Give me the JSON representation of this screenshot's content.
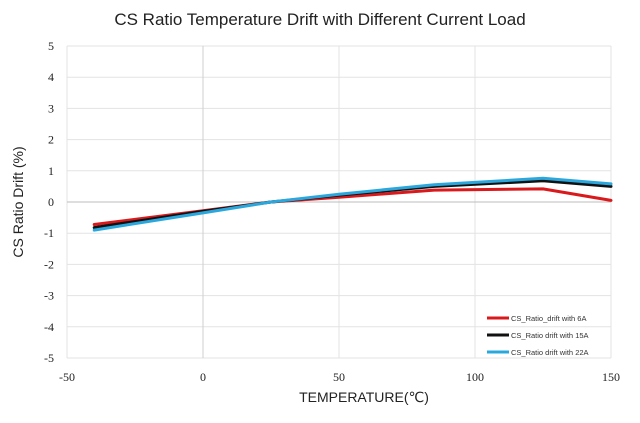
{
  "chart_data": {
    "type": "line",
    "title": "CS Ratio Temperature Drift with Different Current Load",
    "xlabel": "TEMPERATURE(℃)",
    "ylabel": "CS Ratio Drift (%)",
    "xlim": [
      -50,
      150
    ],
    "ylim": [
      -5,
      5
    ],
    "x_ticks": [
      -50,
      0,
      50,
      100,
      150
    ],
    "y_ticks": [
      -5,
      -4,
      -3,
      -2,
      -1,
      0,
      1,
      2,
      3,
      4,
      5
    ],
    "grid": true,
    "legend_position": "bottom-right",
    "series": [
      {
        "name": "CS_Ratio_drift with 6A",
        "color": "#d9191c",
        "x": [
          -40,
          0,
          25,
          50,
          85,
          125,
          150
        ],
        "y": [
          -0.72,
          -0.28,
          0.0,
          0.15,
          0.38,
          0.42,
          0.05
        ]
      },
      {
        "name": "CS_Ratio drift with 15A",
        "color": "#111111",
        "x": [
          -40,
          0,
          25,
          50,
          85,
          125,
          150
        ],
        "y": [
          -0.82,
          -0.3,
          0.0,
          0.22,
          0.5,
          0.68,
          0.5
        ]
      },
      {
        "name": "CS_Ratio drift with 22A",
        "color": "#2aa8dd",
        "x": [
          -40,
          0,
          25,
          50,
          85,
          125,
          150
        ],
        "y": [
          -0.9,
          -0.35,
          0.0,
          0.25,
          0.55,
          0.76,
          0.58
        ]
      }
    ]
  }
}
